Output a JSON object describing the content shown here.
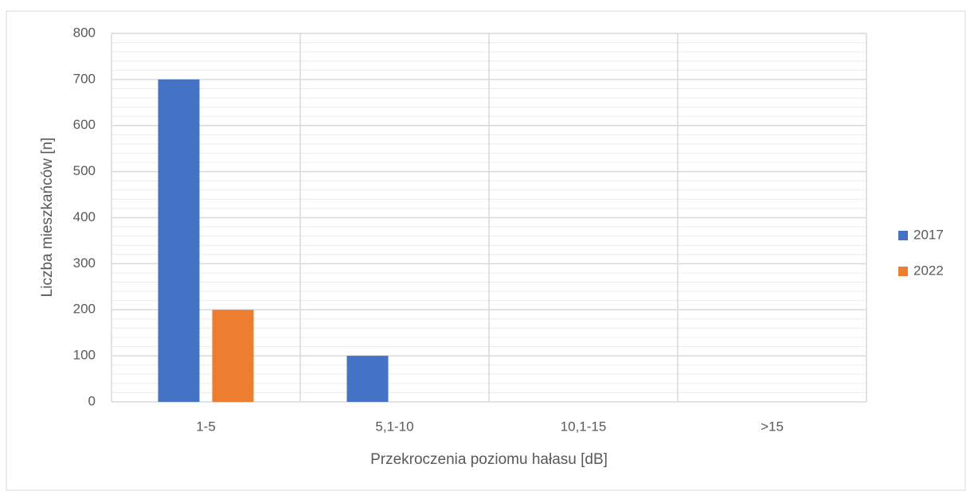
{
  "chart_data": {
    "type": "bar",
    "xlabel": "Przekroczenia poziomu hałasu [dB]",
    "ylabel": "Liczba mieszkańców [n]",
    "categories": [
      "1-5",
      "5,1-10",
      "10,1-15",
      ">15"
    ],
    "series": [
      {
        "name": "2017",
        "color": "#4472c4",
        "values": [
          700,
          100,
          0,
          0
        ]
      },
      {
        "name": "2022",
        "color": "#ed7d31",
        "values": [
          200,
          0,
          0,
          0
        ]
      }
    ],
    "ylim": [
      0,
      800
    ],
    "yticks": [
      0,
      100,
      200,
      300,
      400,
      500,
      600,
      700,
      800
    ],
    "yminorticks": [
      20,
      40,
      60,
      80,
      120,
      140,
      160,
      180,
      220,
      240,
      260,
      280,
      320,
      340,
      360,
      380,
      420,
      440,
      460,
      480,
      520,
      540,
      560,
      580,
      620,
      640,
      660,
      680,
      720,
      740,
      760,
      780
    ],
    "grid": true,
    "legend": "right"
  }
}
